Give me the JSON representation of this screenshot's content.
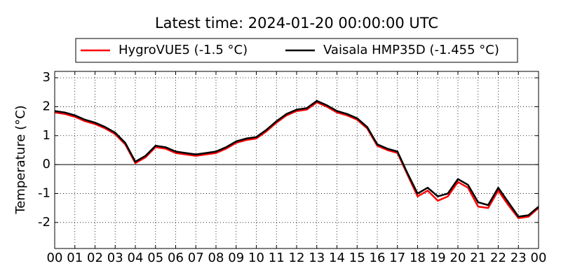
{
  "chart_data": {
    "type": "line",
    "title": "Latest time: 2024-01-20 00:00:00 UTC",
    "ylabel": "Temperature (°C)",
    "x": [
      0,
      0.5,
      1,
      1.5,
      2,
      2.5,
      3,
      3.5,
      4,
      4.5,
      5,
      5.5,
      6,
      6.5,
      7,
      7.5,
      8,
      8.5,
      9,
      9.5,
      10,
      10.5,
      11,
      11.5,
      12,
      12.5,
      13,
      13.5,
      14,
      14.5,
      15,
      15.5,
      16,
      16.5,
      17,
      17.5,
      18,
      18.5,
      19,
      19.5,
      20,
      20.5,
      21,
      21.5,
      22,
      22.5,
      23,
      23.5,
      24
    ],
    "series": [
      {
        "name": "HygroVUE5 (-1.5 °C)",
        "color": "#ff0000",
        "values": [
          1.8,
          1.75,
          1.65,
          1.5,
          1.4,
          1.25,
          1.05,
          0.7,
          0.05,
          0.25,
          0.6,
          0.55,
          0.4,
          0.35,
          0.3,
          0.35,
          0.4,
          0.55,
          0.75,
          0.85,
          0.9,
          1.15,
          1.45,
          1.7,
          1.85,
          1.9,
          2.15,
          2.0,
          1.8,
          1.7,
          1.55,
          1.25,
          0.65,
          0.5,
          0.4,
          -0.35,
          -1.1,
          -0.9,
          -1.25,
          -1.1,
          -0.6,
          -0.8,
          -1.45,
          -1.5,
          -0.9,
          -1.4,
          -1.85,
          -1.8,
          -1.5
        ]
      },
      {
        "name": "Vaisala HMP35D (-1.455 °C)",
        "color": "#000000",
        "values": [
          1.85,
          1.8,
          1.7,
          1.55,
          1.45,
          1.3,
          1.1,
          0.75,
          0.1,
          0.3,
          0.65,
          0.6,
          0.45,
          0.4,
          0.35,
          0.4,
          0.45,
          0.6,
          0.8,
          0.9,
          0.95,
          1.2,
          1.5,
          1.75,
          1.9,
          1.95,
          2.2,
          2.05,
          1.85,
          1.75,
          1.6,
          1.3,
          0.7,
          0.55,
          0.45,
          -0.3,
          -1.0,
          -0.8,
          -1.1,
          -1.0,
          -0.5,
          -0.7,
          -1.3,
          -1.4,
          -0.8,
          -1.3,
          -1.8,
          -1.75,
          -1.455
        ]
      }
    ],
    "xlim": [
      0,
      24
    ],
    "xticks": [
      {
        "value": 0,
        "label": "00"
      },
      {
        "value": 1,
        "label": "01"
      },
      {
        "value": 2,
        "label": "02"
      },
      {
        "value": 3,
        "label": "03"
      },
      {
        "value": 4,
        "label": "04"
      },
      {
        "value": 5,
        "label": "05"
      },
      {
        "value": 6,
        "label": "06"
      },
      {
        "value": 7,
        "label": "07"
      },
      {
        "value": 8,
        "label": "08"
      },
      {
        "value": 9,
        "label": "09"
      },
      {
        "value": 10,
        "label": "10"
      },
      {
        "value": 11,
        "label": "11"
      },
      {
        "value": 12,
        "label": "12"
      },
      {
        "value": 13,
        "label": "13"
      },
      {
        "value": 14,
        "label": "14"
      },
      {
        "value": 15,
        "label": "15"
      },
      {
        "value": 16,
        "label": "16"
      },
      {
        "value": 17,
        "label": "17"
      },
      {
        "value": 18,
        "label": "18"
      },
      {
        "value": 19,
        "label": "19"
      },
      {
        "value": 20,
        "label": "20"
      },
      {
        "value": 21,
        "label": "21"
      },
      {
        "value": 22,
        "label": "22"
      },
      {
        "value": 23,
        "label": "23"
      },
      {
        "value": 24,
        "label": "00"
      }
    ],
    "ylim": [
      -2.9,
      3.22
    ],
    "yticks": [
      -2,
      -1,
      0,
      1,
      2,
      3
    ],
    "grid": true,
    "legend": "top"
  }
}
